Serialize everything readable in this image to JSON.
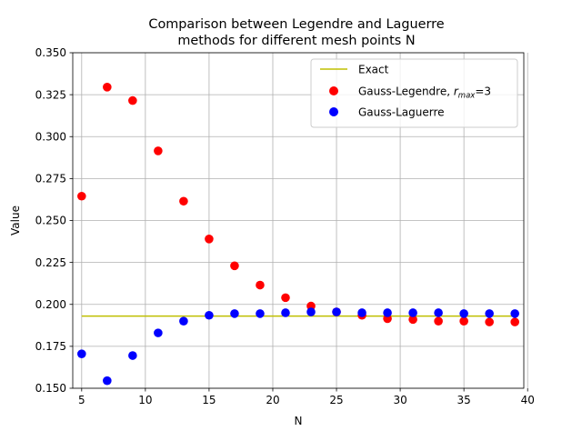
{
  "chart_data": {
    "type": "scatter",
    "title_lines": [
      "Comparison between Legendre and Laguerre",
      "methods for different mesh points N"
    ],
    "xlabel": "N",
    "ylabel": "Value",
    "xlim": [
      4.3,
      39.7
    ],
    "ylim": [
      0.15,
      0.35
    ],
    "x_ticks": [
      5,
      10,
      15,
      20,
      25,
      30,
      35,
      40
    ],
    "x_tick_labels": [
      "5",
      "10",
      "15",
      "20",
      "25",
      "30",
      "35",
      "40"
    ],
    "y_ticks": [
      0.15,
      0.175,
      0.2,
      0.225,
      0.25,
      0.275,
      0.3,
      0.325,
      0.35
    ],
    "y_tick_labels": [
      "0.150",
      "0.175",
      "0.200",
      "0.225",
      "0.250",
      "0.275",
      "0.300",
      "0.325",
      "0.350"
    ],
    "grid": true,
    "legend_position": "top-right",
    "exact": {
      "name": "Exact",
      "value": 0.193,
      "x_range": [
        5,
        39
      ],
      "color": "#bfbf00"
    },
    "series": [
      {
        "name_main": "Gauss-Legendre, ",
        "name_var": "r",
        "name_sub": "max",
        "name_tail": "=3",
        "color": "#ff0000",
        "x": [
          5,
          7,
          9,
          11,
          13,
          15,
          17,
          19,
          21,
          23,
          25,
          27,
          29,
          31,
          33,
          35,
          37,
          39
        ],
        "values": [
          0.2645,
          0.3295,
          0.3215,
          0.2915,
          0.2615,
          0.239,
          0.223,
          0.2115,
          0.204,
          0.199,
          0.1955,
          0.1935,
          0.1915,
          0.191,
          0.19,
          0.19,
          0.1895,
          0.1895
        ]
      },
      {
        "name": "Gauss-Laguerre",
        "color": "#0000ff",
        "x": [
          5,
          7,
          9,
          11,
          13,
          15,
          17,
          19,
          21,
          23,
          25,
          27,
          29,
          31,
          33,
          35,
          37,
          39
        ],
        "values": [
          0.1705,
          0.1545,
          0.1695,
          0.183,
          0.19,
          0.1935,
          0.1945,
          0.1945,
          0.195,
          0.1955,
          0.1955,
          0.195,
          0.195,
          0.195,
          0.195,
          0.1945,
          0.1945,
          0.1945
        ]
      }
    ]
  }
}
